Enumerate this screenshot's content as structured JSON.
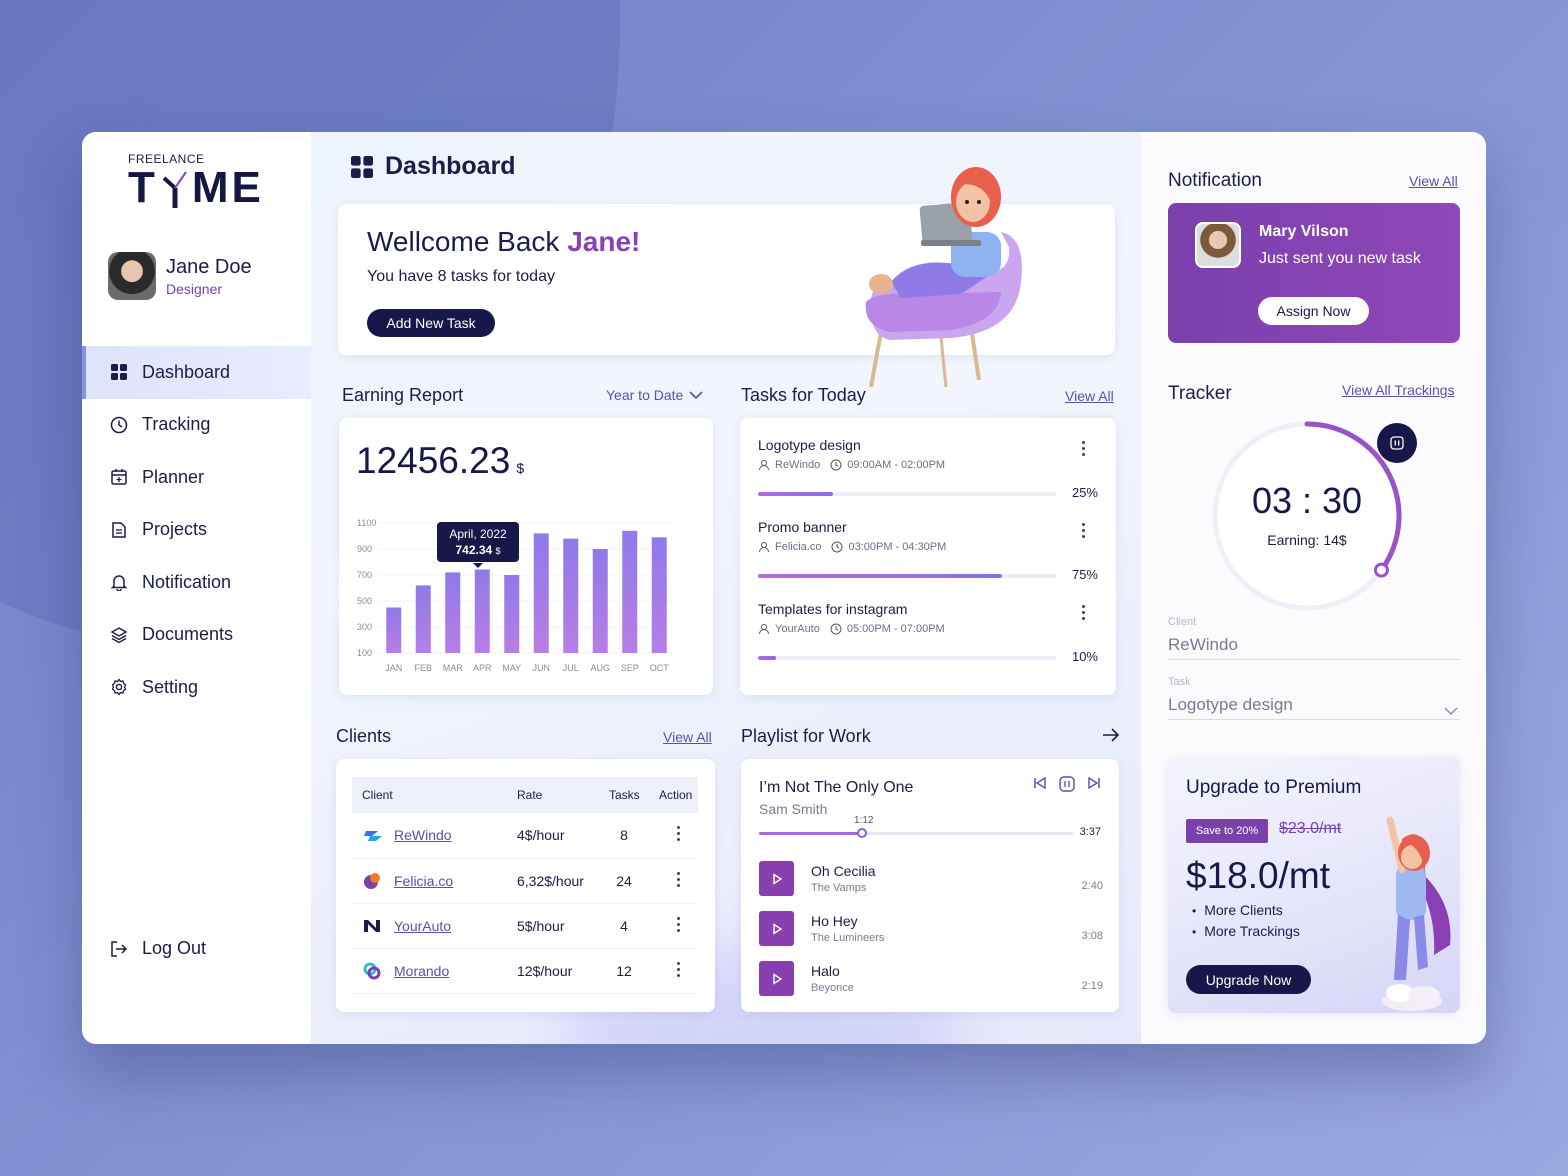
{
  "brand": {
    "small": "FREELANCE",
    "big_left": "T",
    "big_right": "ME"
  },
  "user": {
    "name": "Jane Doe",
    "role": "Designer"
  },
  "nav": [
    {
      "label": "Dashboard",
      "icon": "grid-icon",
      "active": true
    },
    {
      "label": "Tracking",
      "icon": "clock-icon"
    },
    {
      "label": "Planner",
      "icon": "calendar-icon"
    },
    {
      "label": "Projects",
      "icon": "file-icon"
    },
    {
      "label": "Notification",
      "icon": "bell-icon"
    },
    {
      "label": "Documents",
      "icon": "layers-icon"
    },
    {
      "label": "Setting",
      "icon": "gear-icon"
    }
  ],
  "logout": "Log Out",
  "page_title": "Dashboard",
  "welcome": {
    "greeting": "Wellcome Back ",
    "name": "Jane!",
    "subtitle": "You have 8 tasks for today",
    "button": "Add New Task"
  },
  "earning": {
    "title": "Earning Report",
    "filter": "Year to Date",
    "total": "12456.23",
    "currency": "$",
    "tooltip": {
      "label": "April, 2022",
      "value": "742.34",
      "unit": "$"
    }
  },
  "chart_data": {
    "type": "bar",
    "categories": [
      "JAN",
      "FEB",
      "MAR",
      "APR",
      "MAY",
      "JUN",
      "JUL",
      "AUG",
      "SEP",
      "OCT"
    ],
    "values": [
      450,
      620,
      720,
      742.34,
      700,
      1020,
      980,
      900,
      1040,
      990
    ],
    "y_ticks": [
      "1100",
      "900",
      "700",
      "500",
      "300",
      "100"
    ],
    "ylim": [
      100,
      1100
    ],
    "grid": true,
    "highlight_index": 3
  },
  "tasks": {
    "title": "Tasks for Today",
    "view_all": "View All",
    "items": [
      {
        "title": "Logotype design",
        "client": "ReWindo",
        "time": "09:00AM - 02:00PM",
        "percent_label": "25%",
        "progress": 0.25
      },
      {
        "title": "Promo banner",
        "client": "Felicia.co",
        "time": "03:00PM - 04:30PM",
        "percent_label": "75%",
        "progress": 0.75
      },
      {
        "title": "Templates for instagram",
        "client": "YourAuto",
        "time": "05:00PM - 07:00PM",
        "percent_label": "10%",
        "progress": 0.1
      }
    ]
  },
  "clients": {
    "title": "Clients",
    "view_all": "View All",
    "headers": {
      "client": "Client",
      "rate": "Rate",
      "tasks": "Tasks",
      "action": "Action"
    },
    "rows": [
      {
        "name": "ReWindo",
        "rate": "4$/hour",
        "tasks": "8",
        "logo": "rewindo-logo"
      },
      {
        "name": "Felicia.co",
        "rate": "6,32$/hour",
        "tasks": "24",
        "logo": "felicia-logo"
      },
      {
        "name": "YourAuto",
        "rate": "5$/hour",
        "tasks": "4",
        "logo": "yourauto-logo"
      },
      {
        "name": "Morando",
        "rate": "12$/hour",
        "tasks": "12",
        "logo": "morando-logo"
      }
    ]
  },
  "playlist": {
    "title": "Playlist for Work",
    "now_playing": {
      "title": "I’m Not The Only One",
      "artist": "Sam Smith",
      "current": "1:12",
      "total": "3:37",
      "progress": 0.33
    },
    "tracks": [
      {
        "title": "Oh Cecilia",
        "artist": "The Vamps",
        "duration": "2:40"
      },
      {
        "title": "Ho Hey",
        "artist": "The Lumineers",
        "duration": "3:08"
      },
      {
        "title": "Halo",
        "artist": "Beyonce",
        "duration": "2:19"
      }
    ]
  },
  "notification": {
    "title": "Notification",
    "view_all": "View All",
    "sender": "Mary Vilson",
    "message": "Just sent you new task",
    "button": "Assign Now"
  },
  "tracker": {
    "title": "Tracker",
    "view_all": "View All Trackings",
    "time": "03 : 30",
    "earning": "Earning: 14$",
    "progress": 0.35,
    "client_label": "Client",
    "client_value": "ReWindo",
    "task_label": "Task",
    "task_value": "Logotype design"
  },
  "premium": {
    "title": "Upgrade to Premium",
    "badge": "Save to 20%",
    "old_price": "$23.0/mt",
    "new_price": "$18.0/mt",
    "features": [
      "More Clients",
      "More Trackings"
    ],
    "button": "Upgrade Now"
  },
  "colors": {
    "primary_dark": "#17174a",
    "accent_purple": "#8b3fb5",
    "bar_top": "#8f7ae8",
    "bar_bottom": "#b77ee6"
  }
}
